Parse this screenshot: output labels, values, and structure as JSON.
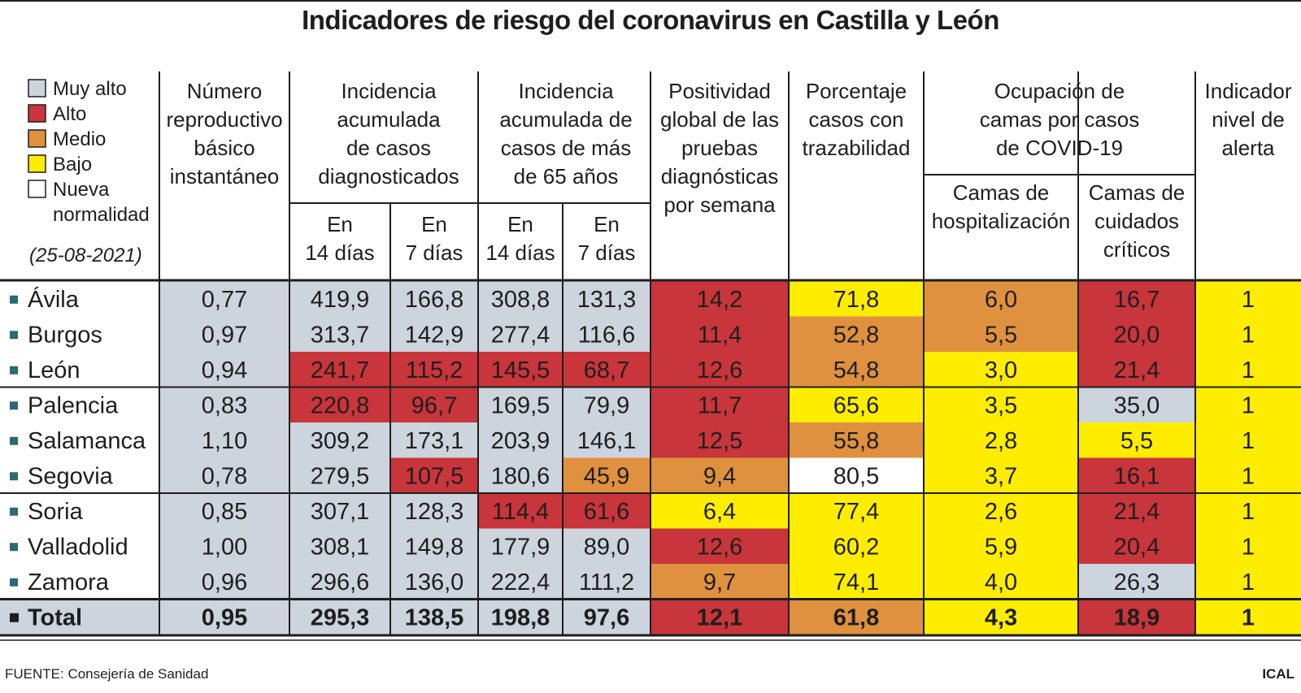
{
  "title": "Indicadores de riesgo del coronavirus en Castilla y León",
  "legend": {
    "items": [
      {
        "label": "Muy alto",
        "color": "#ccd4dd"
      },
      {
        "label": "Alto",
        "color": "#c8353b"
      },
      {
        "label": "Medio",
        "color": "#df913f"
      },
      {
        "label": "Bajo",
        "color": "#ffed00"
      },
      {
        "label": "Nueva",
        "label2": "normalidad",
        "color": "#ffffff"
      }
    ],
    "date": "(25-08-2021)"
  },
  "colors": {
    "M": "#ccd4dd",
    "A": "#c8353b",
    "D": "#df913f",
    "B": "#ffed00",
    "N": "#ffffff",
    "line": "#1e1e1e",
    "bullet": "#2c6a75"
  },
  "headers": {
    "reproductivo": [
      "Número",
      "reproductivo",
      "básico",
      "instantáneo"
    ],
    "incidencia": [
      "Incidencia",
      "acumulada",
      "de casos",
      "diagnosticados"
    ],
    "incidencia65": [
      "Incidencia",
      "acumulada de",
      "casos de más",
      "de 65 años"
    ],
    "positividad": [
      "Positividad",
      "global de las",
      "pruebas",
      "diagnósticas",
      "por semana"
    ],
    "trazabilidad": [
      "Porcentaje",
      "casos con",
      "trazabilidad"
    ],
    "ocupacion": [
      "Ocupación de",
      "camas por casos",
      "de COVID-19"
    ],
    "hospitalizacion": [
      "Camas de",
      "hospitalización"
    ],
    "criticos": [
      "Camas de",
      "cuidados",
      "críticos"
    ],
    "alerta": [
      "Indicador",
      "nivel de",
      "alerta"
    ],
    "dias14": [
      "En",
      "14 días"
    ],
    "dias7": [
      "En",
      "7 días"
    ]
  },
  "chart_data": {
    "type": "table",
    "title": "Indicadores de riesgo del coronavirus en Castilla y León",
    "columns": [
      "Número reproductivo básico instantáneo",
      "Incidencia acumulada de casos diagnosticados - En 14 días",
      "Incidencia acumulada de casos diagnosticados - En 7 días",
      "Incidencia acumulada de casos de más de 65 años - En 14 días",
      "Incidencia acumulada de casos de más de 65 años - En 7 días",
      "Positividad global de las pruebas diagnósticas por semana",
      "Porcentaje casos con trazabilidad",
      "Camas de hospitalización",
      "Camas de cuidados críticos",
      "Indicador nivel de alerta"
    ],
    "rows": [
      {
        "name": "Ávila",
        "values": [
          "0,77",
          "419,9",
          "166,8",
          "308,8",
          "131,3",
          "14,2",
          "71,8",
          "6,0",
          "16,7",
          "1"
        ],
        "levels": [
          "M",
          "M",
          "M",
          "M",
          "M",
          "A",
          "B",
          "D",
          "A",
          "B"
        ]
      },
      {
        "name": "Burgos",
        "values": [
          "0,97",
          "313,7",
          "142,9",
          "277,4",
          "116,6",
          "11,4",
          "52,8",
          "5,5",
          "20,0",
          "1"
        ],
        "levels": [
          "M",
          "M",
          "M",
          "M",
          "M",
          "A",
          "D",
          "D",
          "A",
          "B"
        ]
      },
      {
        "name": "León",
        "values": [
          "0,94",
          "241,7",
          "115,2",
          "145,5",
          "68,7",
          "12,6",
          "54,8",
          "3,0",
          "21,4",
          "1"
        ],
        "levels": [
          "M",
          "A",
          "A",
          "A",
          "A",
          "A",
          "D",
          "B",
          "A",
          "B"
        ]
      },
      {
        "name": "Palencia",
        "values": [
          "0,83",
          "220,8",
          "96,7",
          "169,5",
          "79,9",
          "11,7",
          "65,6",
          "3,5",
          "35,0",
          "1"
        ],
        "levels": [
          "M",
          "A",
          "A",
          "M",
          "M",
          "A",
          "B",
          "B",
          "M",
          "B"
        ]
      },
      {
        "name": "Salamanca",
        "values": [
          "1,10",
          "309,2",
          "173,1",
          "203,9",
          "146,1",
          "12,5",
          "55,8",
          "2,8",
          "5,5",
          "1"
        ],
        "levels": [
          "M",
          "M",
          "M",
          "M",
          "M",
          "A",
          "D",
          "B",
          "B",
          "B"
        ]
      },
      {
        "name": "Segovia",
        "values": [
          "0,78",
          "279,5",
          "107,5",
          "180,6",
          "45,9",
          "9,4",
          "80,5",
          "3,7",
          "16,1",
          "1"
        ],
        "levels": [
          "M",
          "M",
          "A",
          "M",
          "D",
          "D",
          "N",
          "B",
          "A",
          "B"
        ]
      },
      {
        "name": "Soria",
        "values": [
          "0,85",
          "307,1",
          "128,3",
          "114,4",
          "61,6",
          "6,4",
          "77,4",
          "2,6",
          "21,4",
          "1"
        ],
        "levels": [
          "M",
          "M",
          "M",
          "A",
          "A",
          "B",
          "B",
          "B",
          "A",
          "B"
        ]
      },
      {
        "name": "Valladolid",
        "values": [
          "1,00",
          "308,1",
          "149,8",
          "177,9",
          "89,0",
          "12,6",
          "60,2",
          "5,9",
          "20,4",
          "1"
        ],
        "levels": [
          "M",
          "M",
          "M",
          "M",
          "M",
          "A",
          "B",
          "B",
          "A",
          "B"
        ]
      },
      {
        "name": "Zamora",
        "values": [
          "0,96",
          "296,6",
          "136,0",
          "222,4",
          "111,2",
          "9,7",
          "74,1",
          "4,0",
          "26,3",
          "1"
        ],
        "levels": [
          "M",
          "M",
          "M",
          "M",
          "M",
          "D",
          "B",
          "B",
          "M",
          "B"
        ]
      },
      {
        "name": "Total",
        "values": [
          "0,95",
          "295,3",
          "138,5",
          "198,8",
          "97,6",
          "12,1",
          "61,8",
          "4,3",
          "18,9",
          "1"
        ],
        "levels": [
          "M",
          "M",
          "M",
          "M",
          "M",
          "A",
          "D",
          "B",
          "A",
          "B"
        ],
        "bold": true
      }
    ]
  },
  "source": "FUENTE: Consejería de Sanidad",
  "credit": "ICAL"
}
